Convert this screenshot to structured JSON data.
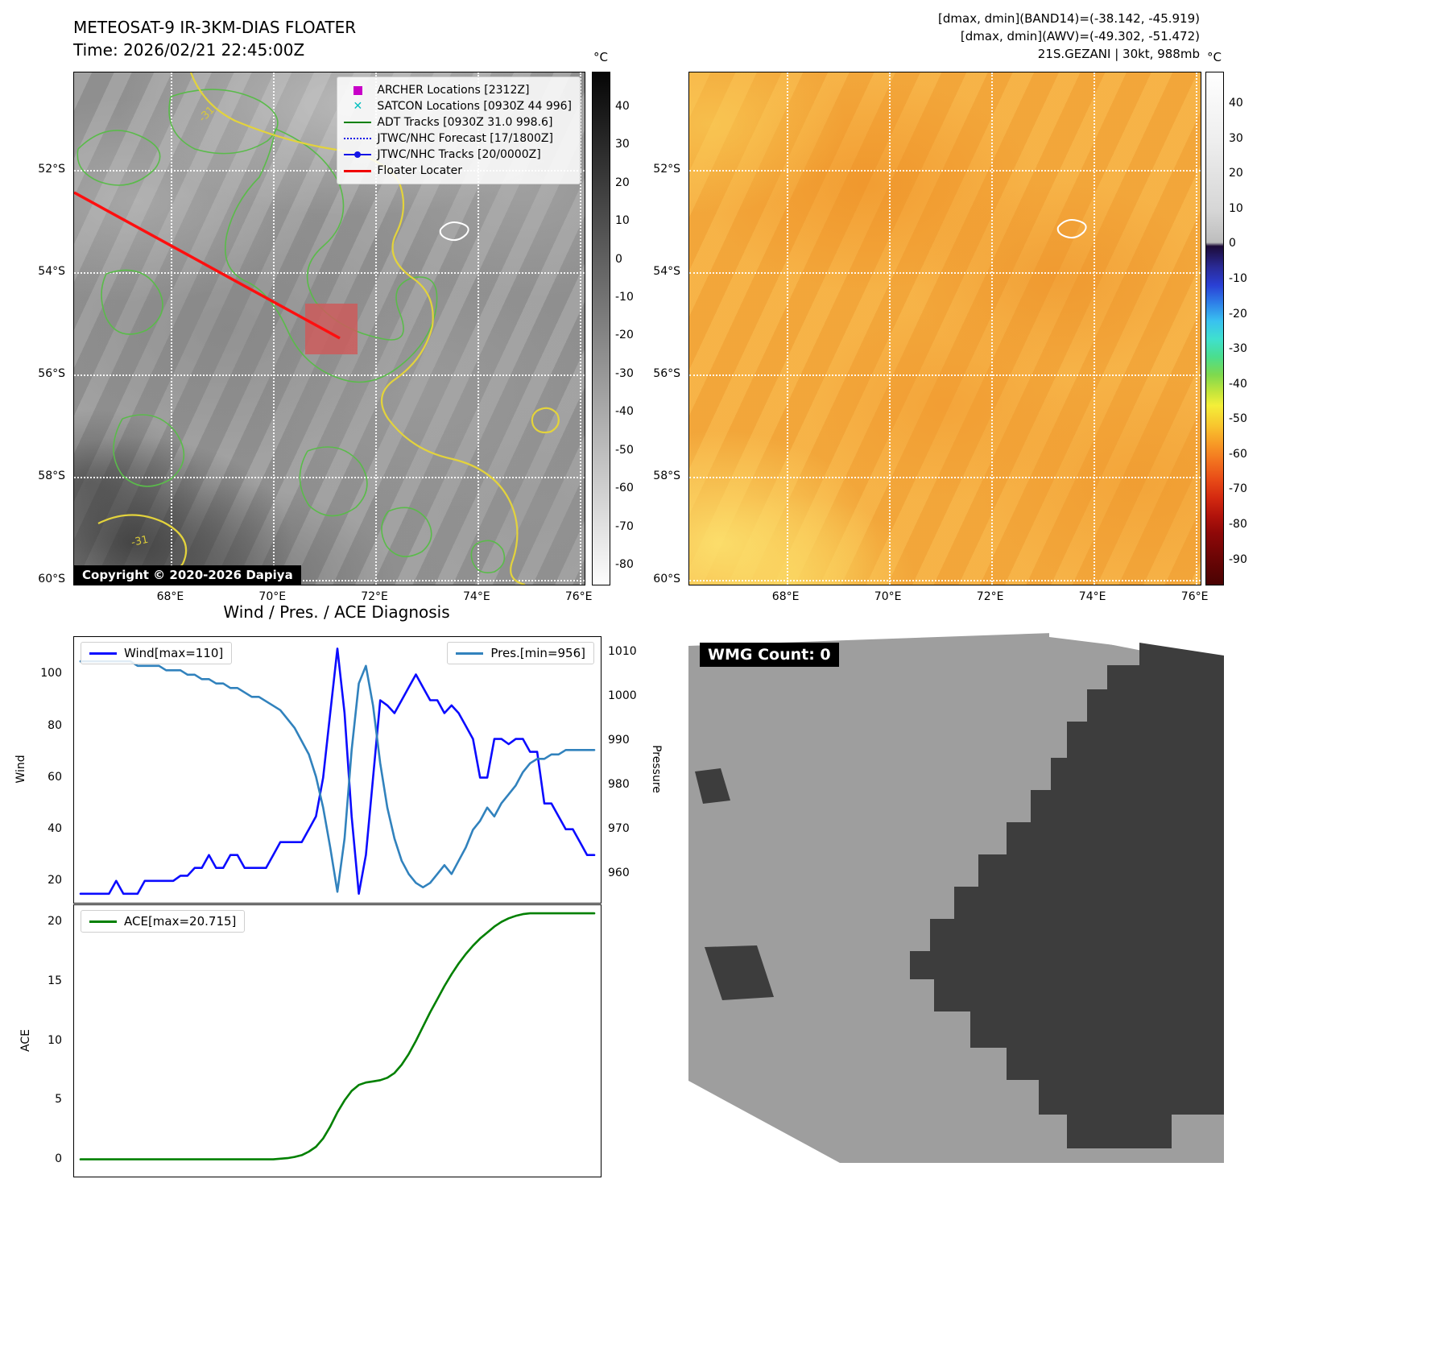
{
  "left_panel": {
    "title": "METEOSAT-9 IR-3KM-DIAS FLOATER",
    "subtitle": "Time: 2026/02/21 22:45:00Z",
    "copyright": "Copyright © 2020-2026 Dapiya",
    "contour_labels": [
      "-31",
      "-31"
    ],
    "legend": [
      {
        "label": "ARCHER Locations [2312Z]",
        "marker": "magenta-square",
        "color": "#c800c8"
      },
      {
        "label": "SATCON Locations [0930Z 44 996]",
        "marker": "cyan-x",
        "color": "#00bebe"
      },
      {
        "label": "ADT Tracks [0930Z 31.0 998.6]",
        "marker": "green-line",
        "color": "#008000"
      },
      {
        "label": "JTWC/NHC Forecast [17/1800Z]",
        "marker": "blue-dotted-line",
        "color": "#1515e6"
      },
      {
        "label": "JTWC/NHC Tracks [20/0000Z]",
        "marker": "blue-line-dot",
        "color": "#1515e6"
      },
      {
        "label": "Floater Locater",
        "marker": "red-line",
        "color": "#f00000"
      }
    ],
    "colorbar": {
      "unit": "°C",
      "vmax": 49,
      "vmin": -85,
      "ticks": [
        40,
        30,
        20,
        10,
        0,
        -10,
        -20,
        -30,
        -40,
        -50,
        -60,
        -70,
        -80
      ]
    }
  },
  "right_panel": {
    "header_lines": [
      "[dmax, dmin](BAND14)=(-38.142, -45.919)",
      "[dmax, dmin](AWV)=(-49.302, -51.472)",
      "21S.GEZANI | 30kt, 988mb"
    ],
    "colorbar": {
      "unit": "°C",
      "vmax": 49,
      "vmin": -97,
      "ticks": [
        40,
        30,
        20,
        10,
        0,
        -10,
        -20,
        -30,
        -40,
        -50,
        -60,
        -70,
        -80,
        -90
      ]
    }
  },
  "map_axes": {
    "lat_range": [
      50.1,
      60.1
    ],
    "lon_range": [
      66.1,
      76.1
    ],
    "lat_ticks": [
      {
        "v": 52,
        "label": "52°S"
      },
      {
        "v": 54,
        "label": "54°S"
      },
      {
        "v": 56,
        "label": "56°S"
      },
      {
        "v": 58,
        "label": "58°S"
      },
      {
        "v": 60,
        "label": "60°S"
      }
    ],
    "lon_ticks": [
      {
        "v": 68,
        "label": "68°E"
      },
      {
        "v": 70,
        "label": "70°E"
      },
      {
        "v": 72,
        "label": "72°E"
      },
      {
        "v": 74,
        "label": "74°E"
      },
      {
        "v": 76,
        "label": "76°E"
      }
    ]
  },
  "wmg_panel": {
    "count_label": "WMG Count: 0"
  },
  "chart_data": [
    {
      "id": "wind_pres",
      "type": "line",
      "title": "Wind / Pres. / ACE Diagnosis",
      "axes": {
        "left": {
          "label": "Wind",
          "ticks": [
            20,
            40,
            60,
            80,
            100
          ],
          "range": [
            11.5,
            114.5
          ]
        },
        "right": {
          "label": "Pressure",
          "ticks": [
            960,
            970,
            980,
            990,
            1000,
            1010
          ],
          "range": [
            953.5,
            1013.5
          ]
        }
      },
      "series": [
        {
          "name": "Wind[max=110]",
          "color": "#0b0bff",
          "axis": "left",
          "values": [
            15,
            15,
            15,
            15,
            15,
            20,
            15,
            15,
            15,
            20,
            20,
            20,
            20,
            20,
            22,
            22,
            25,
            25,
            30,
            25,
            25,
            30,
            30,
            25,
            25,
            25,
            25,
            30,
            35,
            35,
            35,
            35,
            40,
            45,
            60,
            85,
            110,
            85,
            45,
            15,
            30,
            60,
            90,
            88,
            85,
            90,
            95,
            100,
            95,
            90,
            90,
            85,
            88,
            85,
            80,
            75,
            60,
            60,
            75,
            75,
            73,
            75,
            75,
            70,
            70,
            50,
            50,
            45,
            40,
            40,
            35,
            30,
            30
          ]
        },
        {
          "name": "Pres.[min=956]",
          "color": "#3182bd",
          "axis": "right",
          "values": [
            1008,
            1008,
            1008,
            1008,
            1008,
            1008,
            1008,
            1008,
            1007,
            1007,
            1007,
            1007,
            1006,
            1006,
            1006,
            1005,
            1005,
            1004,
            1004,
            1003,
            1003,
            1002,
            1002,
            1001,
            1000,
            1000,
            999,
            998,
            997,
            995,
            993,
            990,
            987,
            982,
            975,
            966,
            956,
            968,
            988,
            1003,
            1007,
            998,
            985,
            975,
            968,
            963,
            960,
            958,
            957,
            958,
            960,
            962,
            960,
            963,
            966,
            970,
            972,
            975,
            973,
            976,
            978,
            980,
            983,
            985,
            986,
            986,
            987,
            987,
            988,
            988,
            988,
            988,
            988
          ]
        }
      ]
    },
    {
      "id": "ace",
      "type": "line",
      "axes": {
        "left": {
          "label": "ACE",
          "ticks": [
            0,
            5,
            10,
            15,
            20
          ],
          "range": [
            -1.4,
            21.4
          ]
        }
      },
      "series": [
        {
          "name": "ACE[max=20.715]",
          "color": "#008000",
          "axis": "left",
          "values": [
            0.05,
            0.05,
            0.05,
            0.05,
            0.05,
            0.05,
            0.05,
            0.05,
            0.05,
            0.05,
            0.05,
            0.05,
            0.05,
            0.05,
            0.05,
            0.05,
            0.05,
            0.05,
            0.05,
            0.05,
            0.05,
            0.05,
            0.05,
            0.05,
            0.05,
            0.05,
            0.05,
            0.05,
            0.1,
            0.15,
            0.25,
            0.4,
            0.7,
            1.1,
            1.8,
            2.8,
            4.0,
            5.0,
            5.8,
            6.3,
            6.5,
            6.6,
            6.7,
            6.9,
            7.3,
            8.0,
            8.9,
            10.0,
            11.2,
            12.4,
            13.5,
            14.6,
            15.6,
            16.5,
            17.3,
            18.0,
            18.6,
            19.1,
            19.6,
            20.0,
            20.3,
            20.5,
            20.65,
            20.715,
            20.715,
            20.715,
            20.715,
            20.715,
            20.715,
            20.715,
            20.715,
            20.715,
            20.715
          ]
        }
      ]
    }
  ]
}
